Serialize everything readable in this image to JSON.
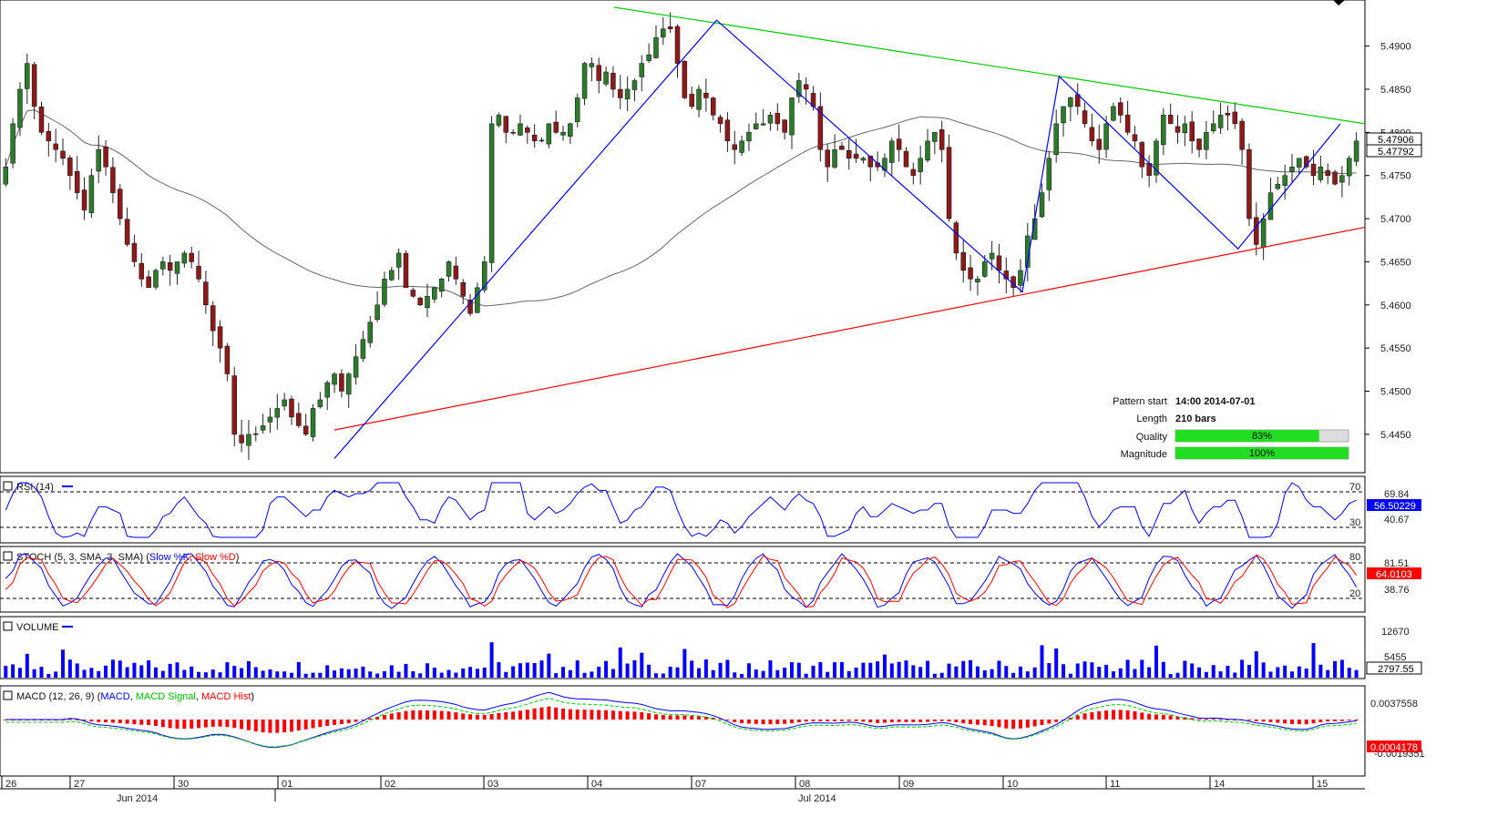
{
  "chart_data": {
    "type": "candlestick",
    "instrument_values": {
      "price_axis": [
        "5.4900",
        "5.4850",
        "5.4800",
        "5.4750",
        "5.4700",
        "5.4650",
        "5.4600",
        "5.4550",
        "5.4500",
        "5.4450"
      ],
      "price_range": [
        5.4415,
        5.4945
      ],
      "current_price_tags": [
        "5.47906",
        "5.47792"
      ]
    },
    "date_labels": [
      "26",
      "27",
      "30",
      "01",
      "02",
      "03",
      "04",
      "07",
      "08",
      "09",
      "10",
      "11",
      "14",
      "15"
    ],
    "month_labels": [
      "Jun 2014",
      "Jul 2014"
    ],
    "pattern_info": {
      "pattern_start_label": "Pattern start",
      "pattern_start_value": "14:00 2014-07-01",
      "length_label": "Length",
      "length_value": "210 bars",
      "quality_label": "Quality",
      "quality_value": "83%",
      "quality_fraction": 0.83,
      "magnitude_label": "Magnitude",
      "magnitude_value": "100%",
      "magnitude_fraction": 1.0
    },
    "trendlines": {
      "resistance": {
        "color": "#00cc00",
        "from": [
          0.45,
          5.4945
        ],
        "to": [
          1.0,
          5.481
        ]
      },
      "support": {
        "color": "#ff0000",
        "from": [
          0.245,
          5.4455
        ],
        "to": [
          1.0,
          5.469
        ]
      }
    },
    "zigzag": {
      "color": "#0000ff",
      "points": [
        [
          0.245,
          5.4422
        ],
        [
          0.525,
          5.493
        ],
        [
          0.749,
          5.4615
        ],
        [
          0.776,
          5.4865
        ],
        [
          0.907,
          5.4665
        ],
        [
          0.982,
          5.481
        ]
      ]
    },
    "candles_close": [
      5.476,
      5.481,
      5.485,
      5.488,
      5.483,
      5.48,
      5.479,
      5.478,
      5.477,
      5.475,
      5.473,
      5.471,
      5.475,
      5.478,
      5.476,
      5.473,
      5.47,
      5.467,
      5.465,
      5.463,
      5.462,
      5.464,
      5.465,
      5.464,
      5.465,
      5.466,
      5.465,
      5.463,
      5.46,
      5.457,
      5.455,
      5.452,
      5.445,
      5.444,
      5.445,
      5.445,
      5.446,
      5.447,
      5.448,
      5.449,
      5.447,
      5.446,
      5.445,
      5.448,
      5.449,
      5.451,
      5.452,
      5.45,
      5.452,
      5.454,
      5.456,
      5.458,
      5.46,
      5.463,
      5.464,
      5.466,
      5.462,
      5.461,
      5.46,
      5.461,
      5.462,
      5.463,
      5.465,
      5.463,
      5.461,
      5.459,
      5.462,
      5.465,
      5.481,
      5.482,
      5.48,
      5.48,
      5.481,
      5.48,
      5.479,
      5.479,
      5.481,
      5.48,
      5.48,
      5.481,
      5.484,
      5.488,
      5.488,
      5.486,
      5.487,
      5.485,
      5.484,
      5.485,
      5.486,
      5.488,
      5.489,
      5.491,
      5.492,
      5.492,
      5.488,
      5.484,
      5.483,
      5.485,
      5.484,
      5.482,
      5.481,
      5.479,
      5.478,
      5.479,
      5.48,
      5.481,
      5.481,
      5.482,
      5.481,
      5.48,
      5.484,
      5.486,
      5.485,
      5.483,
      5.478,
      5.476,
      5.478,
      5.478,
      5.477,
      5.477,
      5.477,
      5.476,
      5.476,
      5.477,
      5.479,
      5.478,
      5.476,
      5.475,
      5.477,
      5.479,
      5.48,
      5.478,
      5.47,
      5.466,
      5.464,
      5.463,
      5.463,
      5.465,
      5.466,
      5.464,
      5.463,
      5.462,
      5.464,
      5.468,
      5.47,
      5.473,
      5.477,
      5.481,
      5.483,
      5.484,
      5.483,
      5.481,
      5.479,
      5.478,
      5.481,
      5.483,
      5.482,
      5.48,
      5.479,
      5.476,
      5.475,
      5.479,
      5.482,
      5.481,
      5.48,
      5.481,
      5.479,
      5.478,
      5.48,
      5.481,
      5.482,
      5.482,
      5.481,
      5.478,
      5.47,
      5.467,
      5.47,
      5.473,
      5.474,
      5.475,
      5.476,
      5.477,
      5.476,
      5.475,
      5.476,
      5.475,
      5.474,
      5.475,
      5.477,
      5.479
    ],
    "panels": [
      {
        "name": "RSI (14)",
        "title": "RSI (14)",
        "levels": [
          "70",
          "30"
        ],
        "axis_labels": [
          "69.84",
          "40.67"
        ],
        "current": "56.50229",
        "series": [
          {
            "name": "RSI",
            "color": "#0000ff"
          }
        ]
      },
      {
        "name": "STOCH",
        "title": "STOCH (5, 3, SMA, 3, SMA)",
        "series_labels": [
          "Slow %K",
          "Slow %D"
        ],
        "levels": [
          "80",
          "20"
        ],
        "axis_labels": [
          "81.51",
          "38.76"
        ],
        "current": "64.0103",
        "series": [
          {
            "name": "Slow %K",
            "color": "#0000ff"
          },
          {
            "name": "Slow %D",
            "color": "#ff0000"
          }
        ]
      },
      {
        "name": "VOLUME",
        "title": "VOLUME",
        "axis_labels": [
          "12670",
          "5455"
        ],
        "current": "2797.55",
        "series": [
          {
            "name": "Volume",
            "color": "#0000ff"
          }
        ]
      },
      {
        "name": "MACD",
        "title": "MACD (12, 26, 9)",
        "series_labels": [
          "MACD",
          "MACD Signal",
          "MACD Hist"
        ],
        "axis_labels": [
          "0.0037558",
          "0.0004178",
          "-0.0019351"
        ],
        "current": "0.0004178",
        "series": [
          {
            "name": "MACD",
            "color": "#0000ff"
          },
          {
            "name": "MACD Signal",
            "color": "#00cc00"
          },
          {
            "name": "MACD Hist",
            "color": "#ff0000"
          }
        ]
      }
    ]
  },
  "colors": {
    "bull": "#2d7a2d",
    "bear": "#8b1a1a",
    "ma": "#666666",
    "grid": "#000000",
    "accent_blue": "#0000ff",
    "accent_red": "#ff0000",
    "accent_green": "#00cc00"
  }
}
